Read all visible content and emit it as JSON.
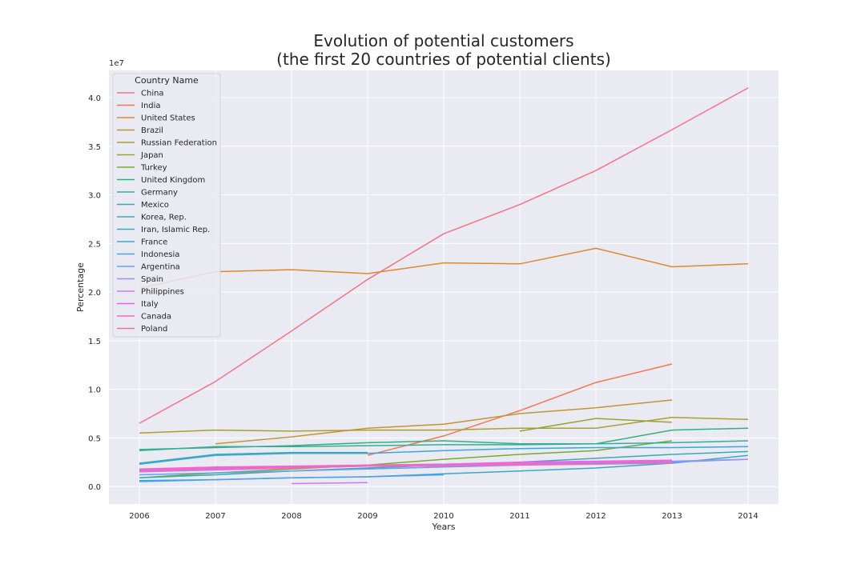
{
  "chart_data": {
    "type": "line",
    "title_line1": "Evolution of potential customers",
    "title_line2": "(the first 20 countries of potential clients)",
    "xlabel": "Years",
    "ylabel": "Percentage",
    "y_scale_label": "1e7",
    "x": [
      2006,
      2007,
      2008,
      2009,
      2010,
      2011,
      2012,
      2013,
      2014
    ],
    "x_tick_labels": [
      "2006",
      "2007",
      "2008",
      "2009",
      "2010",
      "2011",
      "2012",
      "2013",
      "2014"
    ],
    "ylim": [
      -0.18,
      4.28
    ],
    "y_ticks": [
      0.0,
      0.5,
      1.0,
      1.5,
      2.0,
      2.5,
      3.0,
      3.5,
      4.0
    ],
    "y_tick_labels": [
      "0.0",
      "0.5",
      "1.0",
      "1.5",
      "2.0",
      "2.5",
      "3.0",
      "3.5",
      "4.0"
    ],
    "y_units_note": "values in units of 1e7",
    "grid": true,
    "background": "#eaeaf2",
    "legend_title": "Country Name",
    "legend_position": "upper-left",
    "series": [
      {
        "name": "China",
        "color": "#f77189",
        "values": [
          0.65,
          1.08,
          1.6,
          2.13,
          2.6,
          2.9,
          3.25,
          3.67,
          4.1
        ]
      },
      {
        "name": "India",
        "color": "#f7754f",
        "values": [
          null,
          null,
          null,
          0.32,
          0.52,
          0.78,
          1.07,
          1.26,
          null
        ]
      },
      {
        "name": "United States",
        "color": "#dc8932",
        "values": [
          2.04,
          2.21,
          2.23,
          2.19,
          2.3,
          2.29,
          2.45,
          2.26,
          2.29
        ]
      },
      {
        "name": "Brazil",
        "color": "#c39532",
        "values": [
          null,
          0.44,
          0.51,
          0.6,
          0.64,
          0.75,
          0.81,
          0.89,
          null
        ]
      },
      {
        "name": "Russian Federation",
        "color": "#ae9d31",
        "values": [
          0.55,
          0.58,
          0.57,
          0.58,
          0.58,
          0.6,
          0.6,
          0.71,
          0.69
        ]
      },
      {
        "name": "Japan",
        "color": "#97a431",
        "values": [
          null,
          null,
          null,
          null,
          null,
          0.57,
          0.7,
          0.66,
          null
        ]
      },
      {
        "name": "Turkey",
        "color": "#77ab31",
        "values": [
          0.09,
          0.14,
          0.18,
          0.22,
          0.28,
          0.33,
          0.37,
          0.47,
          null
        ]
      },
      {
        "name": "United Kingdom",
        "color": "#33b07a",
        "values": [
          0.38,
          0.4,
          0.42,
          0.45,
          0.47,
          0.44,
          0.44,
          0.58,
          0.6
        ]
      },
      {
        "name": "Germany",
        "color": "#35ad9c",
        "values": [
          0.37,
          0.41,
          0.41,
          0.42,
          0.43,
          0.43,
          0.44,
          0.45,
          0.47
        ]
      },
      {
        "name": "Mexico",
        "color": "#36ada4",
        "values": [
          0.24,
          0.33,
          0.35,
          0.35,
          null,
          null,
          null,
          null,
          null
        ]
      },
      {
        "name": "Korea, Rep.",
        "color": "#37abb4",
        "values": [
          0.09,
          0.12,
          0.16,
          0.19,
          0.22,
          0.25,
          0.29,
          0.33,
          0.36
        ]
      },
      {
        "name": "Iran, Islamic Rep.",
        "color": "#38a9c5",
        "values": [
          0.06,
          0.07,
          0.09,
          0.1,
          0.13,
          0.16,
          0.19,
          0.24,
          0.32
        ]
      },
      {
        "name": "France",
        "color": "#3aa5df",
        "values": [
          0.23,
          0.32,
          0.34,
          0.34,
          0.37,
          0.39,
          0.4,
          0.4,
          0.41
        ]
      },
      {
        "name": "Indonesia",
        "color": "#4b9ff5",
        "values": [
          0.05,
          0.07,
          0.09,
          0.1,
          0.12,
          null,
          null,
          null,
          null
        ]
      },
      {
        "name": "Argentina",
        "color": "#6e9bf4",
        "values": [
          0.12,
          0.14,
          0.16,
          0.18,
          0.2,
          0.22,
          0.24,
          0.25,
          0.28
        ]
      },
      {
        "name": "Spain",
        "color": "#a48cf4",
        "values": [
          0.15,
          0.17,
          0.19,
          0.21,
          0.22,
          0.23,
          0.25,
          0.26,
          0.28
        ]
      },
      {
        "name": "Philippines",
        "color": "#cc7af4",
        "values": [
          null,
          null,
          0.03,
          0.04,
          null,
          null,
          null,
          null,
          null
        ]
      },
      {
        "name": "Italy",
        "color": "#f45cf2",
        "values": [
          0.17,
          0.19,
          0.2,
          0.22,
          0.23,
          0.25,
          0.26,
          0.27,
          null
        ]
      },
      {
        "name": "Canada",
        "color": "#f565cc",
        "values": [
          0.18,
          0.2,
          0.21,
          0.22,
          0.23,
          0.24,
          0.25,
          0.26,
          null
        ]
      },
      {
        "name": "Poland",
        "color": "#f66bad",
        "values": [
          0.16,
          0.18,
          0.19,
          0.21,
          0.21,
          0.22,
          0.23,
          0.24,
          null
        ]
      }
    ]
  }
}
